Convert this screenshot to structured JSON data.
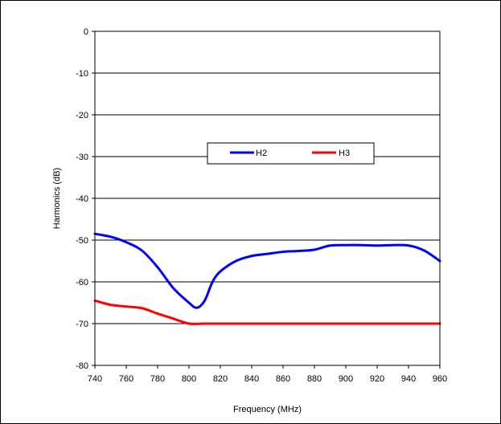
{
  "chart_data": {
    "type": "line",
    "title": "",
    "xlabel": "Frequency (MHz)",
    "ylabel": "Harmonics (dB)",
    "xlim": [
      740,
      960
    ],
    "ylim": [
      -80,
      0
    ],
    "xticks": [
      740,
      760,
      780,
      800,
      820,
      840,
      860,
      880,
      900,
      920,
      940,
      960
    ],
    "yticks": [
      0,
      -10,
      -20,
      -30,
      -40,
      -50,
      -60,
      -70,
      -80
    ],
    "grid": "horizontal",
    "legend_position": "center",
    "series": [
      {
        "name": "H2",
        "color": "#0000ff",
        "x": [
          740,
          750,
          760,
          770,
          780,
          790,
          800,
          805,
          810,
          815,
          820,
          830,
          840,
          850,
          860,
          870,
          880,
          890,
          900,
          910,
          920,
          930,
          940,
          950,
          960
        ],
        "y": [
          -48.5,
          -49.2,
          -50.5,
          -52.5,
          -56.5,
          -61.5,
          -65.0,
          -66.2,
          -64.5,
          -60.0,
          -57.5,
          -55.0,
          -53.8,
          -53.3,
          -52.8,
          -52.6,
          -52.3,
          -51.3,
          -51.2,
          -51.2,
          -51.3,
          -51.2,
          -51.3,
          -52.5,
          -55.0
        ]
      },
      {
        "name": "H3",
        "color": "#ff0000",
        "x": [
          740,
          750,
          760,
          770,
          780,
          790,
          800,
          810,
          820,
          840,
          860,
          880,
          900,
          920,
          940,
          960
        ],
        "y": [
          -64.5,
          -65.5,
          -65.9,
          -66.3,
          -67.6,
          -68.8,
          -70.0,
          -70.0,
          -70.0,
          -70.0,
          -70.0,
          -70.0,
          -70.0,
          -70.0,
          -70.0,
          -70.0
        ]
      }
    ]
  }
}
